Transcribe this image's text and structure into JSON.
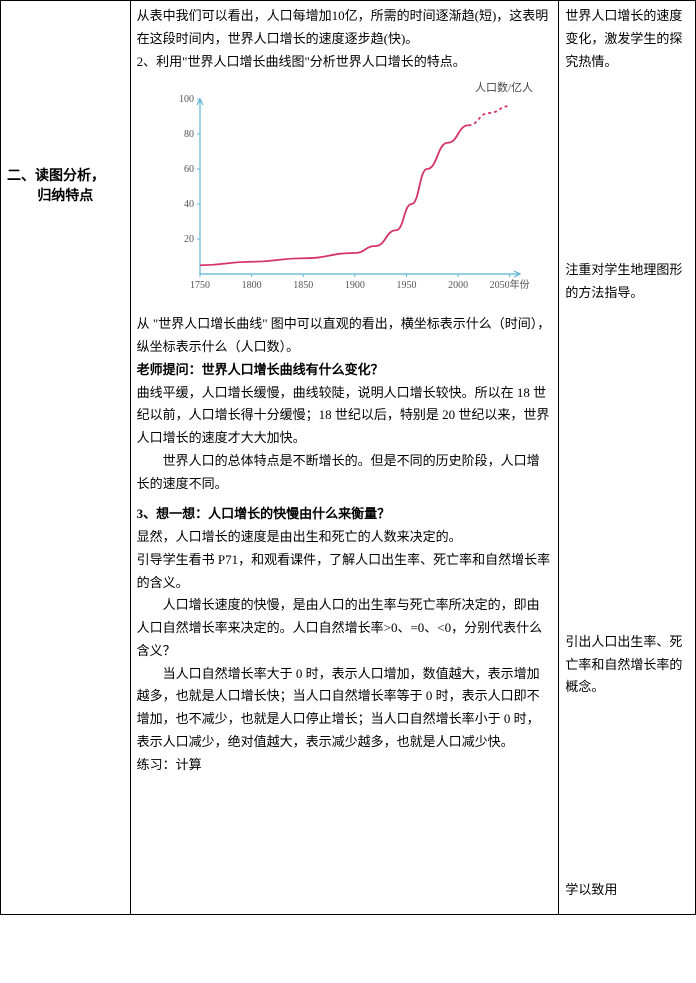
{
  "left": {
    "section_title_a": "二、读图分析，",
    "section_title_b": "归纳特点"
  },
  "mid": {
    "p1": "从表中我们可以看出，人口每增加10亿，所需的时间逐渐趋(短)，这表明在这段时间内，世界人口增长的速度逐步趋(快)。",
    "p2": "2、利用\"世界人口增长曲线图\"分析世界人口增长的特点。",
    "chart": {
      "y_label": "人口数/亿人",
      "y_ticks": [
        "100",
        "80",
        "60",
        "40",
        "20"
      ],
      "x_ticks": [
        "1750",
        "1800",
        "1850",
        "1900",
        "1950",
        "2000",
        "2050年份"
      ],
      "line_color": "#d6336c",
      "axis_color": "#5eb5d4",
      "bg_color": "#ffffff",
      "points": [
        [
          0,
          5
        ],
        [
          50,
          7
        ],
        [
          100,
          9
        ],
        [
          150,
          12
        ],
        [
          170,
          16
        ],
        [
          190,
          25
        ],
        [
          205,
          40
        ],
        [
          220,
          60
        ],
        [
          240,
          75
        ],
        [
          260,
          85
        ],
        [
          280,
          92
        ],
        [
          300,
          96
        ]
      ],
      "xlim": [
        0,
        310
      ],
      "ylim": [
        0,
        100
      ]
    },
    "p3": "从 \"世界人口增长曲线\" 图中可以直观的看出，横坐标表示什么（时间），纵坐标表示什么（人口数）。",
    "p4": "老师提问：世界人口增长曲线有什么变化？",
    "p5": "曲线平缓，人口增长缓慢，曲线较陡，说明人口增长较快。所以在 18 世纪以前，人口增长得十分缓慢；18 世纪以后，特别是 20 世纪以来，世界人口增长的速度才大大加快。",
    "p6": "世界人口的总体特点是不断增长的。但是不同的历史阶段，人口增长的速度不同。",
    "p7": "3、想一想：人口增长的快慢由什么来衡量？",
    "p8": "显然，人口增长的速度是由出生和死亡的人数来决定的。",
    "p9": "引导学生看书 P71，和观看课件，了解人口出生率、死亡率和自然增长率的含义。",
    "p10": "人口增长速度的快慢，是由人口的出生率与死亡率所决定的，即由人口自然增长率来决定的。人口自然增长率>0、=0、<0，分别代表什么含义？",
    "p11": "当人口自然增长率大于 0 时，表示人口增加，数值越大，表示增加越多，也就是人口增长快；当人口自然增长率等于 0 时，表示人口即不增加，也不减少，也就是人口停止增长；当人口自然增长率小于 0 时，表示人口减少，绝对值越大，表示减少越多，也就是人口减少快。",
    "p12": "练习：计算"
  },
  "right": {
    "n1": "世界人口增长的速度变化，激发学生的探究热情。",
    "n2": "注重对学生地理图形的方法指导。",
    "n3": "引出人口出生率、死亡率和自然增长率的概念。",
    "n4": "学以致用"
  }
}
